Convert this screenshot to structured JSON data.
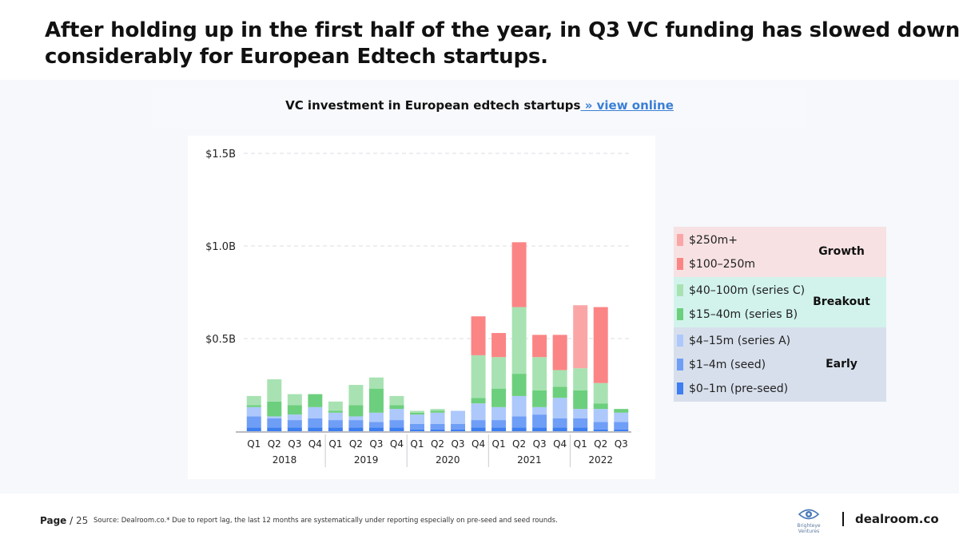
{
  "headline": {
    "line1": "After holding up in the first half of the year, in Q3 VC funding has slowed down",
    "line2": "considerably for European Edtech startups."
  },
  "chart_title": {
    "text": "VC investment in European edtech startups",
    "link": " » view online"
  },
  "colors": {
    "s0": "#3d7ef0",
    "s1": "#6f9ef7",
    "s2": "#adc8fb",
    "s3": "#6ccf7d",
    "s4": "#a8e2b2",
    "s5": "#fb8585",
    "s6": "#fba6a6",
    "growth_band": "#f7e1e3",
    "breakout_band": "#d2f3ec",
    "early_band": "#d7dfec"
  },
  "chart_data": {
    "type": "bar",
    "stacked": true,
    "title": "VC investment in European edtech startups",
    "xlabel": "",
    "ylabel": "",
    "ylim": [
      0,
      1.5
    ],
    "y_ticks": [
      {
        "value": 0.5,
        "label": "$0.5B"
      },
      {
        "value": 1.0,
        "label": "$1.0B"
      },
      {
        "value": 1.5,
        "label": "$1.5B"
      }
    ],
    "categories": [
      "Q1",
      "Q2",
      "Q3",
      "Q4",
      "Q1",
      "Q2",
      "Q3",
      "Q4",
      "Q1",
      "Q2",
      "Q3",
      "Q4",
      "Q1",
      "Q2",
      "Q3",
      "Q4",
      "Q1",
      "Q2",
      "Q3"
    ],
    "year_groups": [
      {
        "label": "2018",
        "start": 0,
        "end": 3
      },
      {
        "label": "2019",
        "start": 4,
        "end": 7
      },
      {
        "label": "2020",
        "start": 8,
        "end": 11
      },
      {
        "label": "2021",
        "start": 12,
        "end": 15
      },
      {
        "label": "2022",
        "start": 16,
        "end": 18
      }
    ],
    "series": [
      {
        "name": "$0–1m (pre-seed)",
        "color_key": "s0",
        "values": [
          0.02,
          0.02,
          0.02,
          0.02,
          0.02,
          0.02,
          0.02,
          0.02,
          0.01,
          0.01,
          0.01,
          0.02,
          0.02,
          0.02,
          0.02,
          0.02,
          0.02,
          0.01,
          0.01
        ]
      },
      {
        "name": "$1–4m (seed)",
        "color_key": "s1",
        "values": [
          0.06,
          0.05,
          0.04,
          0.05,
          0.04,
          0.04,
          0.03,
          0.04,
          0.03,
          0.03,
          0.03,
          0.04,
          0.04,
          0.06,
          0.07,
          0.05,
          0.05,
          0.04,
          0.04
        ]
      },
      {
        "name": "$4–15m (series A)",
        "color_key": "s2",
        "values": [
          0.05,
          0.01,
          0.03,
          0.06,
          0.04,
          0.02,
          0.05,
          0.06,
          0.05,
          0.06,
          0.07,
          0.09,
          0.07,
          0.11,
          0.04,
          0.11,
          0.05,
          0.07,
          0.05
        ]
      },
      {
        "name": "$15–40m (series B)",
        "color_key": "s3",
        "values": [
          0.01,
          0.08,
          0.05,
          0.07,
          0.01,
          0.06,
          0.13,
          0.02,
          0.01,
          0.01,
          0.0,
          0.03,
          0.1,
          0.12,
          0.09,
          0.06,
          0.1,
          0.03,
          0.02
        ]
      },
      {
        "name": "$40–100m (series C)",
        "color_key": "s4",
        "values": [
          0.05,
          0.12,
          0.06,
          0.0,
          0.05,
          0.11,
          0.06,
          0.05,
          0.01,
          0.01,
          0.0,
          0.23,
          0.17,
          0.36,
          0.18,
          0.09,
          0.12,
          0.11,
          0.0
        ]
      },
      {
        "name": "$100–250m",
        "color_key": "s5",
        "values": [
          0,
          0,
          0,
          0,
          0,
          0,
          0,
          0,
          0,
          0,
          0,
          0.21,
          0.13,
          0.35,
          0.12,
          0.19,
          0,
          0.41,
          0
        ]
      },
      {
        "name": "$250m+",
        "color_key": "s6",
        "values": [
          0,
          0,
          0,
          0,
          0,
          0,
          0,
          0,
          0,
          0,
          0,
          0,
          0,
          0,
          0,
          0,
          0.34,
          0,
          0
        ]
      }
    ]
  },
  "legend": {
    "groups": [
      {
        "label": "Growth",
        "band_key": "growth_band",
        "items": [
          {
            "label": "$250m+",
            "color_key": "s6"
          },
          {
            "label": "$100–250m",
            "color_key": "s5"
          }
        ]
      },
      {
        "label": "Breakout",
        "band_key": "breakout_band",
        "items": [
          {
            "label": "$40–100m (series C)",
            "color_key": "s4"
          },
          {
            "label": "$15–40m (series B)",
            "color_key": "s3"
          }
        ]
      },
      {
        "label": "Early",
        "band_key": "early_band",
        "items": [
          {
            "label": "$4–15m (series A)",
            "color_key": "s2"
          },
          {
            "label": "$1–4m (seed)",
            "color_key": "s1"
          },
          {
            "label": "$0–1m (pre-seed)",
            "color_key": "s0"
          }
        ]
      }
    ]
  },
  "footer": {
    "page_label": "Page",
    "page_sep": " / ",
    "page_number": "25",
    "source": "Source: Dealroom.co.* Due to report lag, the last 12 months are systematically under reporting especially on pre-seed and seed rounds.",
    "logo_brighteye": "Brighteye Ventures",
    "logo_dealroom": "dealroom.co"
  }
}
